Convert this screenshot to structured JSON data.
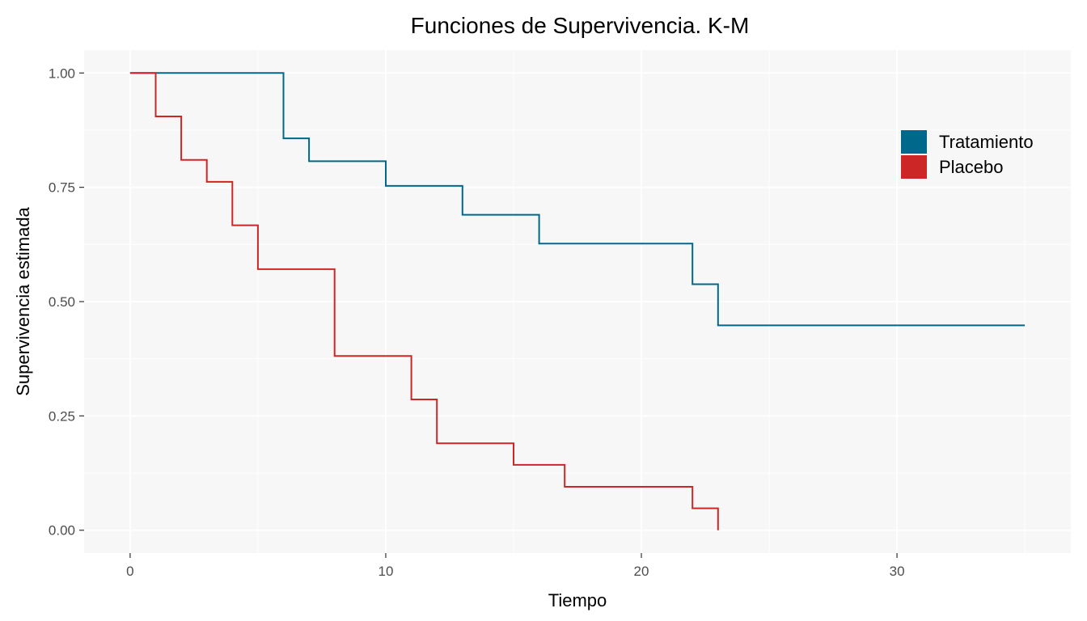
{
  "chart_data": {
    "type": "line",
    "step": true,
    "title": "Funciones de Supervivencia. K-M",
    "xlabel": "Tiempo",
    "ylabel": "Supervivencia estimada",
    "xlim": [
      -1.8,
      36.8
    ],
    "ylim": [
      -0.05,
      1.05
    ],
    "xticks": [
      0,
      10,
      20,
      30
    ],
    "xtick_labels": [
      "0",
      "10",
      "20",
      "30"
    ],
    "yticks": [
      0,
      0.25,
      0.5,
      0.75,
      1
    ],
    "ytick_labels": [
      "0.00",
      "0.25",
      "0.50",
      "0.75",
      "1.00"
    ],
    "grid": true,
    "panel_background": "#f7f7f7",
    "grid_color": "#ffffff",
    "legend_position": "top-right",
    "series": [
      {
        "name": "Tratamiento",
        "color": "#00688b",
        "x": [
          0,
          6,
          7,
          10,
          13,
          16,
          22,
          23,
          35
        ],
        "y": [
          1.0,
          0.857,
          0.807,
          0.753,
          0.69,
          0.627,
          0.538,
          0.448,
          0.448
        ]
      },
      {
        "name": "Placebo",
        "color": "#cd2626",
        "x": [
          0,
          1,
          2,
          3,
          4,
          5,
          8,
          11,
          12,
          15,
          17,
          22,
          23
        ],
        "y": [
          1.0,
          0.905,
          0.81,
          0.762,
          0.667,
          0.571,
          0.381,
          0.286,
          0.19,
          0.143,
          0.095,
          0.048,
          0.0
        ]
      }
    ]
  }
}
